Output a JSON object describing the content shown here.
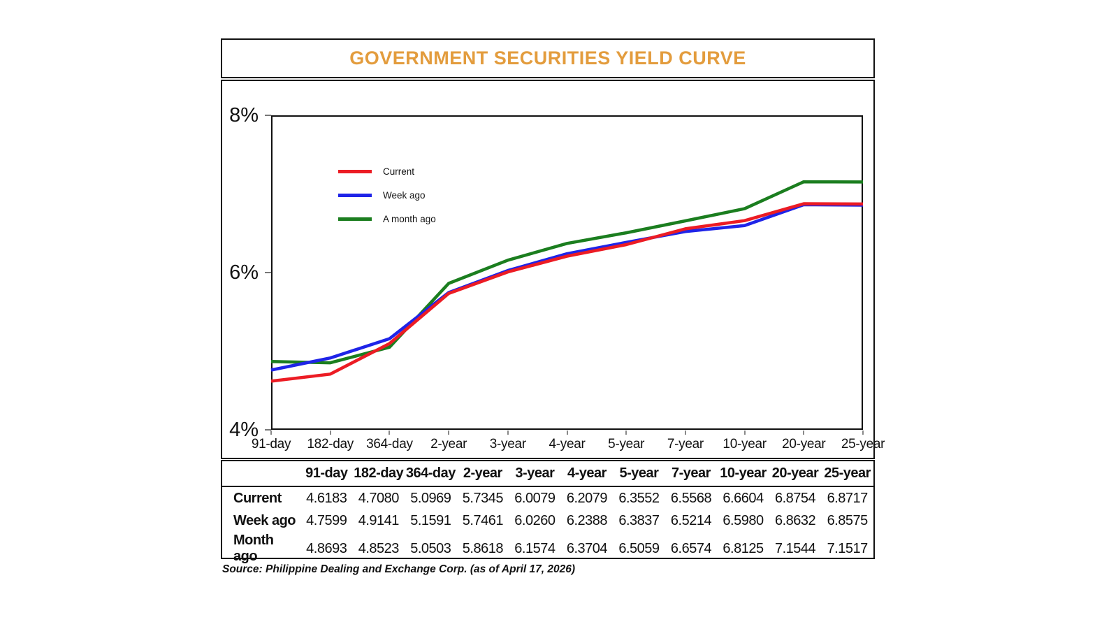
{
  "title": "GOVERNMENT SECURITIES YIELD CURVE",
  "source_note": "Source: Philippine Dealing and Exchange Corp. (as of April 17, 2026)",
  "colors": {
    "title_accent": "#E39C3D",
    "current": "#EC1C24",
    "week_ago": "#1F24E8",
    "month_ago": "#1B7E1F"
  },
  "chart_data": {
    "type": "line",
    "title": "GOVERNMENT SECURITIES YIELD CURVE",
    "categories": [
      "91-day",
      "182-day",
      "364-day",
      "2-year",
      "3-year",
      "4-year",
      "5-year",
      "7-year",
      "10-year",
      "20-year",
      "25-year"
    ],
    "series": [
      {
        "name": "Current",
        "color": "#EC1C24",
        "values": [
          4.6183,
          4.708,
          5.0969,
          5.7345,
          6.0079,
          6.2079,
          6.3552,
          6.5568,
          6.6604,
          6.8754,
          6.8717
        ]
      },
      {
        "name": "Week ago",
        "color": "#1F24E8",
        "values": [
          4.7599,
          4.9141,
          5.1591,
          5.7461,
          6.026,
          6.2388,
          6.3837,
          6.5214,
          6.598,
          6.8632,
          6.8575
        ]
      },
      {
        "name": "A month ago",
        "color": "#1B7E1F",
        "values": [
          4.8693,
          4.8523,
          5.0503,
          5.8618,
          6.1574,
          6.3704,
          6.5059,
          6.6574,
          6.8125,
          7.1544,
          7.1517
        ]
      }
    ],
    "xlabel": "",
    "ylabel": "",
    "ylim": [
      4,
      8
    ],
    "y_ticks": [
      "8%",
      "6%",
      "4%"
    ],
    "grid": false,
    "legend_position": "top-left"
  },
  "table": {
    "columns": [
      "91-day",
      "182-day",
      "364-day",
      "2-year",
      "3-year",
      "4-year",
      "5-year",
      "7-year",
      "10-year",
      "20-year",
      "25-year"
    ],
    "rows": [
      {
        "label": "Current",
        "values": [
          "4.6183",
          "4.7080",
          "5.0969",
          "5.7345",
          "6.0079",
          "6.2079",
          "6.3552",
          "6.5568",
          "6.6604",
          "6.8754",
          "6.8717"
        ]
      },
      {
        "label": "Week ago",
        "values": [
          "4.7599",
          "4.9141",
          "5.1591",
          "5.7461",
          "6.0260",
          "6.2388",
          "6.3837",
          "6.5214",
          "6.5980",
          "6.8632",
          "6.8575"
        ]
      },
      {
        "label": "Month ago",
        "values": [
          "4.8693",
          "4.8523",
          "5.0503",
          "5.8618",
          "6.1574",
          "6.3704",
          "6.5059",
          "6.6574",
          "6.8125",
          "7.1544",
          "7.1517"
        ]
      }
    ]
  }
}
